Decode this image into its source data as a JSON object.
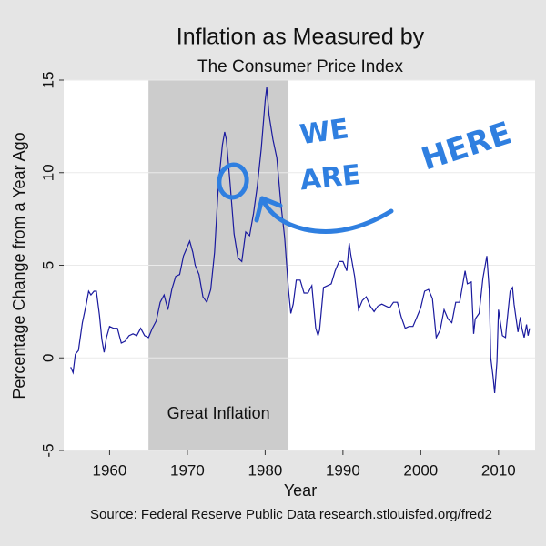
{
  "chart_data": {
    "type": "line",
    "title": "Inflation as Measured by",
    "subtitle": "The Consumer Price Index",
    "x_label": "Year",
    "y_label": "Percentage Change from a Year Ago",
    "source": "Source: Federal Reserve Public Data research.stlouisfed.org/fred2",
    "shaded_region": {
      "x": [
        1965,
        1983
      ],
      "label": "Great Inflation",
      "color": "#cccccc"
    },
    "handwritten": [
      "WE",
      "ARE",
      "HERE"
    ],
    "handwritten_color": "#2f7fe0",
    "xlim": [
      1954.1,
      2014.7
    ],
    "xticks": [
      1960,
      1970,
      1980,
      1990,
      2000,
      2010
    ],
    "ylim": [
      -5,
      15
    ],
    "yticks": [
      -5,
      0,
      5,
      10,
      15
    ],
    "grid": true,
    "series": [
      {
        "name": "CPI",
        "color": "#1a1a9e",
        "x": [
          1955.0,
          1955.3,
          1955.6,
          1956.0,
          1956.5,
          1957.0,
          1957.3,
          1957.6,
          1958.0,
          1958.3,
          1958.7,
          1959.0,
          1959.3,
          1959.6,
          1960.0,
          1960.5,
          1961.0,
          1961.5,
          1962.0,
          1962.5,
          1963.0,
          1963.5,
          1964.0,
          1964.5,
          1965.0,
          1965.5,
          1966.0,
          1966.5,
          1967.0,
          1967.5,
          1968.0,
          1968.5,
          1969.0,
          1969.5,
          1970.0,
          1970.3,
          1970.7,
          1971.0,
          1971.5,
          1972.0,
          1972.5,
          1973.0,
          1973.5,
          1974.0,
          1974.5,
          1974.8,
          1975.0,
          1975.5,
          1976.0,
          1976.5,
          1977.0,
          1977.5,
          1978.0,
          1978.5,
          1979.0,
          1979.5,
          1980.0,
          1980.2,
          1980.5,
          1981.0,
          1981.5,
          1982.0,
          1982.5,
          1983.0,
          1983.3,
          1983.6,
          1984.0,
          1984.5,
          1985.0,
          1985.5,
          1986.0,
          1986.5,
          1986.8,
          1987.0,
          1987.5,
          1988.0,
          1988.5,
          1989.0,
          1989.5,
          1990.0,
          1990.5,
          1990.8,
          1991.0,
          1991.5,
          1992.0,
          1992.5,
          1993.0,
          1993.5,
          1994.0,
          1994.5,
          1995.0,
          1995.5,
          1996.0,
          1996.5,
          1997.0,
          1997.5,
          1998.0,
          1998.5,
          1999.0,
          1999.5,
          2000.0,
          2000.5,
          2001.0,
          2001.5,
          2002.0,
          2002.5,
          2003.0,
          2003.5,
          2004.0,
          2004.5,
          2005.0,
          2005.7,
          2006.0,
          2006.5,
          2006.8,
          2007.0,
          2007.5,
          2008.0,
          2008.5,
          2008.8,
          2009.0,
          2009.3,
          2009.5,
          2009.8,
          2010.0,
          2010.5,
          2010.9,
          2011.0,
          2011.5,
          2011.8,
          2012.0,
          2012.5,
          2012.8,
          2013.0,
          2013.3,
          2013.6,
          2013.8,
          2014.0
        ],
        "values": [
          -0.5,
          -0.8,
          0.2,
          0.4,
          1.9,
          2.9,
          3.6,
          3.4,
          3.6,
          3.6,
          2.3,
          1.0,
          0.3,
          1.1,
          1.7,
          1.6,
          1.6,
          0.8,
          0.9,
          1.2,
          1.3,
          1.2,
          1.6,
          1.2,
          1.1,
          1.6,
          2.0,
          3.0,
          3.4,
          2.6,
          3.7,
          4.4,
          4.5,
          5.5,
          6.0,
          6.3,
          5.7,
          5.0,
          4.5,
          3.3,
          3.0,
          3.7,
          5.7,
          9.4,
          11.5,
          12.2,
          11.8,
          9.4,
          6.7,
          5.4,
          5.2,
          6.8,
          6.6,
          7.8,
          9.3,
          11.3,
          13.9,
          14.6,
          13.1,
          11.8,
          10.8,
          8.4,
          6.5,
          3.7,
          2.4,
          2.9,
          4.2,
          4.2,
          3.5,
          3.5,
          3.9,
          1.6,
          1.2,
          1.5,
          3.8,
          3.9,
          4.0,
          4.7,
          5.2,
          5.2,
          4.7,
          6.2,
          5.6,
          4.4,
          2.6,
          3.1,
          3.3,
          2.8,
          2.5,
          2.8,
          2.9,
          2.8,
          2.7,
          3.0,
          3.0,
          2.2,
          1.6,
          1.7,
          1.7,
          2.2,
          2.7,
          3.6,
          3.7,
          3.2,
          1.1,
          1.5,
          2.6,
          2.1,
          1.9,
          3.0,
          3.0,
          4.7,
          4.0,
          4.1,
          1.3,
          2.1,
          2.4,
          4.3,
          5.5,
          3.7,
          0.0,
          -1.0,
          -1.9,
          -0.2,
          2.6,
          1.2,
          1.1,
          1.6,
          3.6,
          3.8,
          2.9,
          1.4,
          2.2,
          1.6,
          1.1,
          1.8,
          1.2,
          1.6
        ]
      }
    ]
  }
}
